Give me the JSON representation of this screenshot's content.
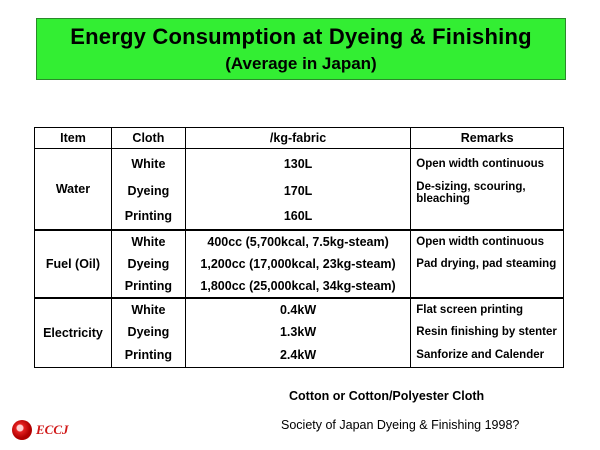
{
  "title": {
    "main": "Energy Consumption at Dyeing & Finishing",
    "sub": "(Average in Japan)"
  },
  "table": {
    "headers": [
      "Item",
      "Cloth",
      "/kg-fabric",
      "Remarks"
    ],
    "groups": [
      {
        "item": "Water",
        "cloth": [
          "White",
          "Dyeing",
          "Printing"
        ],
        "values": [
          "130L",
          "170L",
          "160L"
        ],
        "remarks": [
          "Open width continuous",
          "De-sizing, scouring, bleaching",
          ""
        ]
      },
      {
        "item": "Fuel (Oil)",
        "cloth": [
          "White",
          "Dyeing",
          "Printing"
        ],
        "values": [
          "400cc (5,700kcal,  7.5kg-steam)",
          "1,200cc (17,000kcal,  23kg-steam)",
          "1,800cc (25,000kcal,  34kg-steam)"
        ],
        "remarks": [
          "Open width continuous",
          "Pad drying, pad steaming",
          ""
        ]
      },
      {
        "item": "Electricity",
        "cloth": [
          "White",
          "Dyeing",
          "Printing"
        ],
        "values": [
          "0.4kW",
          "1.3kW",
          "2.4kW"
        ],
        "remarks": [
          "Flat screen printing",
          "Resin finishing by stenter",
          "Sanforize and Calender"
        ]
      }
    ]
  },
  "footnotes": {
    "fabric": "Cotton  or Cotton/Polyester  Cloth",
    "source": "Society of Japan Dyeing & Finishing 1998?"
  },
  "logo": {
    "text": "ECCJ"
  }
}
